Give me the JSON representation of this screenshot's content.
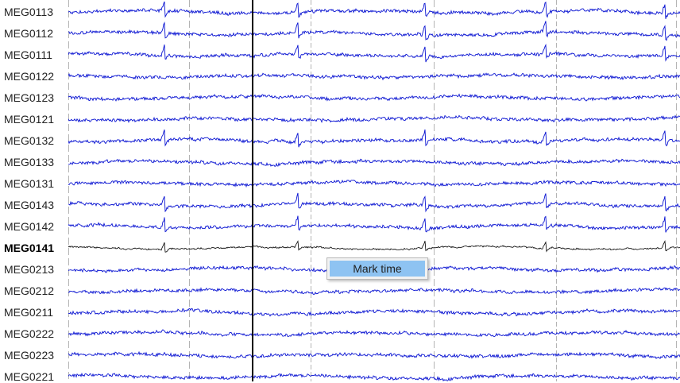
{
  "channels": [
    {
      "label": "MEG0113",
      "selected": false,
      "seed": 11
    },
    {
      "label": "MEG0112",
      "selected": false,
      "seed": 12
    },
    {
      "label": "MEG0111",
      "selected": false,
      "seed": 13
    },
    {
      "label": "MEG0122",
      "selected": false,
      "seed": 14
    },
    {
      "label": "MEG0123",
      "selected": false,
      "seed": 15
    },
    {
      "label": "MEG0121",
      "selected": false,
      "seed": 16
    },
    {
      "label": "MEG0132",
      "selected": false,
      "seed": 17
    },
    {
      "label": "MEG0133",
      "selected": false,
      "seed": 18
    },
    {
      "label": "MEG0131",
      "selected": false,
      "seed": 19
    },
    {
      "label": "MEG0143",
      "selected": false,
      "seed": 20
    },
    {
      "label": "MEG0142",
      "selected": false,
      "seed": 21
    },
    {
      "label": "MEG0141",
      "selected": true,
      "seed": 22
    },
    {
      "label": "MEG0213",
      "selected": false,
      "seed": 23
    },
    {
      "label": "MEG0212",
      "selected": false,
      "seed": 24
    },
    {
      "label": "MEG0211",
      "selected": false,
      "seed": 25
    },
    {
      "label": "MEG0222",
      "selected": false,
      "seed": 26
    },
    {
      "label": "MEG0223",
      "selected": false,
      "seed": 27
    },
    {
      "label": "MEG0221",
      "selected": false,
      "seed": 28
    }
  ],
  "context_menu": {
    "items": [
      "Mark time"
    ]
  },
  "colors": {
    "trace": "#0a14d2",
    "selected_trace": "#000000",
    "grid": "#b4b4b4",
    "cursor": "#000000",
    "menu_highlight": "#8ec3f2"
  }
}
